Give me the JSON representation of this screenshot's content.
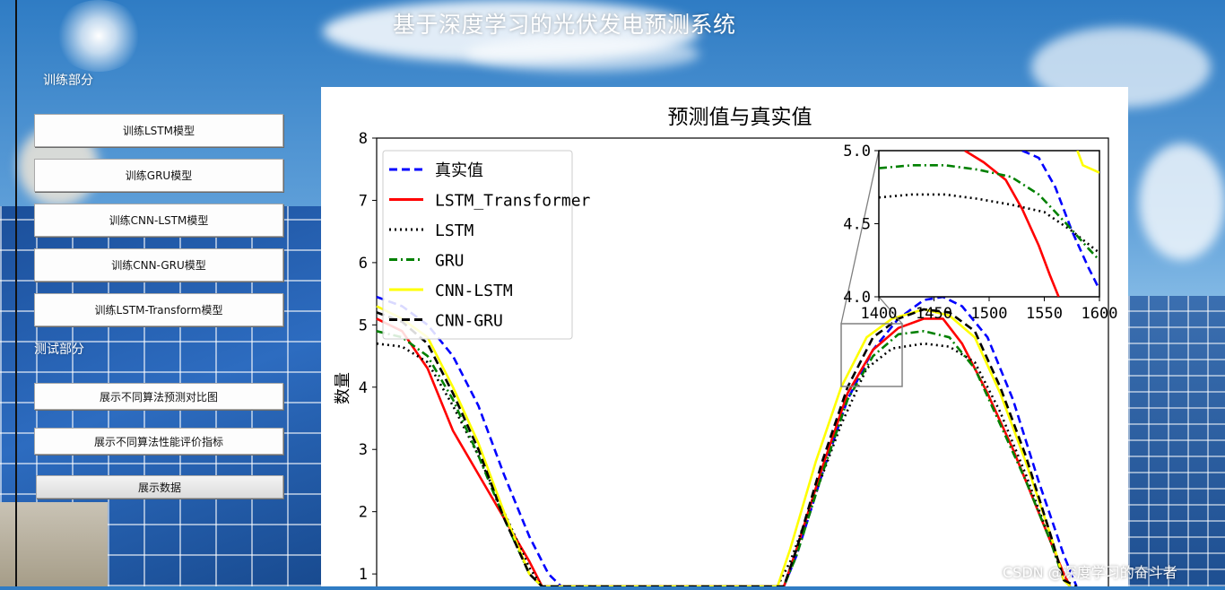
{
  "window": {
    "title": "基于深度学习的光伏发电预测系统"
  },
  "sidebar": {
    "train_section_label": "训练部分",
    "train_buttons": [
      {
        "label": "训练LSTM模型"
      },
      {
        "label": "训练GRU模型"
      },
      {
        "label": "训练CNN-LSTM模型"
      },
      {
        "label": "训练CNN-GRU模型"
      },
      {
        "label": "训练LSTM-Transform模型"
      }
    ],
    "test_section_label": "测试部分",
    "test_buttons": [
      {
        "label": "展示不同算法预测对比图"
      },
      {
        "label": "展示不同算法性能评价指标"
      },
      {
        "label": "展示数据"
      }
    ]
  },
  "watermark": "CSDN @深度学习的奋斗者",
  "chart_data": {
    "type": "line",
    "title": "预测值与真实值",
    "ylabel": "数量",
    "xlabel": "",
    "ylim": [
      0.8,
      8
    ],
    "yticks": [
      "1",
      "2",
      "3",
      "4",
      "5",
      "6",
      "7",
      "8"
    ],
    "legend_position": "top-left",
    "series": [
      {
        "name": "真实值",
        "color": "#0000ff",
        "style": "dashed",
        "points": [
          [
            0,
            5.45
          ],
          [
            4,
            5.3
          ],
          [
            8,
            5.0
          ],
          [
            12,
            4.5
          ],
          [
            16,
            3.7
          ],
          [
            20,
            2.6
          ],
          [
            24,
            1.6
          ],
          [
            27,
            1.0
          ],
          [
            29,
            0.8
          ],
          [
            40,
            0.8
          ],
          [
            64,
            0.8
          ],
          [
            66,
            1.3
          ],
          [
            70,
            2.6
          ],
          [
            74,
            3.8
          ],
          [
            78,
            4.6
          ],
          [
            82,
            5.1
          ],
          [
            86,
            5.4
          ],
          [
            89,
            5.45
          ],
          [
            92,
            5.3
          ],
          [
            96,
            4.8
          ],
          [
            100,
            3.8
          ],
          [
            104,
            2.5
          ],
          [
            108,
            1.3
          ],
          [
            110,
            0.8
          ]
        ]
      },
      {
        "name": "LSTM_Transformer",
        "color": "#ff0000",
        "style": "solid",
        "points": [
          [
            0,
            5.1
          ],
          [
            4,
            4.9
          ],
          [
            8,
            4.3
          ],
          [
            12,
            3.3
          ],
          [
            16,
            2.6
          ],
          [
            20,
            1.9
          ],
          [
            24,
            1.2
          ],
          [
            26,
            0.8
          ],
          [
            64,
            0.8
          ],
          [
            66,
            1.4
          ],
          [
            70,
            2.7
          ],
          [
            74,
            3.9
          ],
          [
            78,
            4.6
          ],
          [
            82,
            4.95
          ],
          [
            86,
            5.1
          ],
          [
            89,
            5.1
          ],
          [
            92,
            4.7
          ],
          [
            96,
            3.9
          ],
          [
            100,
            3.0
          ],
          [
            104,
            2.0
          ],
          [
            108,
            1.0
          ],
          [
            109,
            0.8
          ]
        ]
      },
      {
        "name": "LSTM",
        "color": "#000000",
        "style": "dotted",
        "points": [
          [
            0,
            4.7
          ],
          [
            4,
            4.65
          ],
          [
            8,
            4.4
          ],
          [
            12,
            3.7
          ],
          [
            16,
            2.9
          ],
          [
            20,
            2.0
          ],
          [
            24,
            1.1
          ],
          [
            26,
            0.8
          ],
          [
            63,
            0.8
          ],
          [
            65,
            1.2
          ],
          [
            69,
            2.3
          ],
          [
            73,
            3.4
          ],
          [
            77,
            4.3
          ],
          [
            81,
            4.62
          ],
          [
            86,
            4.7
          ],
          [
            90,
            4.65
          ],
          [
            94,
            4.4
          ],
          [
            98,
            3.6
          ],
          [
            102,
            2.6
          ],
          [
            106,
            1.5
          ],
          [
            108,
            0.9
          ],
          [
            109,
            0.8
          ]
        ]
      },
      {
        "name": "GRU",
        "color": "#008000",
        "style": "dashdot",
        "points": [
          [
            0,
            4.9
          ],
          [
            4,
            4.8
          ],
          [
            8,
            4.5
          ],
          [
            12,
            3.8
          ],
          [
            16,
            2.9
          ],
          [
            20,
            1.9
          ],
          [
            24,
            1.0
          ],
          [
            26,
            0.8
          ],
          [
            64,
            0.8
          ],
          [
            66,
            1.3
          ],
          [
            70,
            2.6
          ],
          [
            74,
            3.8
          ],
          [
            78,
            4.5
          ],
          [
            82,
            4.85
          ],
          [
            86,
            4.9
          ],
          [
            90,
            4.8
          ],
          [
            94,
            4.3
          ],
          [
            98,
            3.4
          ],
          [
            102,
            2.5
          ],
          [
            106,
            1.5
          ],
          [
            108,
            0.9
          ],
          [
            109,
            0.8
          ]
        ]
      },
      {
        "name": "CNN-LSTM",
        "color": "#ffff00",
        "style": "solid",
        "points": [
          [
            0,
            5.3
          ],
          [
            4,
            5.1
          ],
          [
            8,
            4.8
          ],
          [
            12,
            4.0
          ],
          [
            16,
            3.1
          ],
          [
            20,
            2.0
          ],
          [
            24,
            1.0
          ],
          [
            26,
            0.8
          ],
          [
            63,
            0.8
          ],
          [
            65,
            1.4
          ],
          [
            69,
            2.8
          ],
          [
            73,
            4.0
          ],
          [
            77,
            4.8
          ],
          [
            81,
            5.1
          ],
          [
            86,
            5.25
          ],
          [
            90,
            5.15
          ],
          [
            94,
            4.8
          ],
          [
            98,
            3.9
          ],
          [
            102,
            2.8
          ],
          [
            106,
            1.6
          ],
          [
            108,
            0.9
          ],
          [
            109,
            0.8
          ]
        ]
      },
      {
        "name": "CNN-GRU",
        "color": "#000000",
        "style": "dashed",
        "points": [
          [
            0,
            5.2
          ],
          [
            4,
            5.05
          ],
          [
            8,
            4.7
          ],
          [
            12,
            3.9
          ],
          [
            16,
            3.0
          ],
          [
            20,
            1.9
          ],
          [
            24,
            1.0
          ],
          [
            26,
            0.8
          ],
          [
            64,
            0.8
          ],
          [
            66,
            1.4
          ],
          [
            70,
            2.8
          ],
          [
            74,
            4.0
          ],
          [
            78,
            4.8
          ],
          [
            82,
            5.1
          ],
          [
            86,
            5.25
          ],
          [
            90,
            5.2
          ],
          [
            94,
            4.9
          ],
          [
            98,
            4.0
          ],
          [
            102,
            2.9
          ],
          [
            106,
            1.6
          ],
          [
            108,
            0.9
          ],
          [
            110,
            0.8
          ]
        ]
      }
    ],
    "inset": {
      "xlim": [
        1400,
        1600
      ],
      "ylim": [
        4.0,
        5.0
      ],
      "xticks": [
        "1400",
        "1450",
        "1500",
        "1550",
        "1600"
      ],
      "yticks": [
        "4.0",
        "4.5",
        "5.0"
      ],
      "series": [
        {
          "name": "真实值",
          "color": "#0000ff",
          "style": "dashed",
          "points": [
            [
              1530,
              5.0
            ],
            [
              1545,
              4.95
            ],
            [
              1560,
              4.75
            ],
            [
              1575,
              4.45
            ],
            [
              1590,
              4.2
            ],
            [
              1600,
              4.05
            ]
          ]
        },
        {
          "name": "LSTM_Transformer",
          "color": "#ff0000",
          "style": "solid",
          "points": [
            [
              1478,
              5.0
            ],
            [
              1495,
              4.92
            ],
            [
              1515,
              4.8
            ],
            [
              1530,
              4.6
            ],
            [
              1545,
              4.35
            ],
            [
              1555,
              4.15
            ],
            [
              1563,
              4.0
            ]
          ]
        },
        {
          "name": "LSTM",
          "color": "#000000",
          "style": "dotted",
          "points": [
            [
              1400,
              4.68
            ],
            [
              1430,
              4.7
            ],
            [
              1460,
              4.7
            ],
            [
              1490,
              4.67
            ],
            [
              1520,
              4.63
            ],
            [
              1550,
              4.58
            ],
            [
              1575,
              4.45
            ],
            [
              1600,
              4.3
            ]
          ]
        },
        {
          "name": "GRU",
          "color": "#008000",
          "style": "dashdot",
          "points": [
            [
              1400,
              4.88
            ],
            [
              1430,
              4.9
            ],
            [
              1460,
              4.9
            ],
            [
              1490,
              4.87
            ],
            [
              1520,
              4.82
            ],
            [
              1545,
              4.7
            ],
            [
              1570,
              4.5
            ],
            [
              1590,
              4.33
            ],
            [
              1600,
              4.25
            ]
          ]
        },
        {
          "name": "CNN-LSTM",
          "color": "#ffff00",
          "style": "solid",
          "points": [
            [
              1580,
              5.0
            ],
            [
              1585,
              4.9
            ],
            [
              1600,
              4.85
            ]
          ]
        }
      ]
    }
  }
}
